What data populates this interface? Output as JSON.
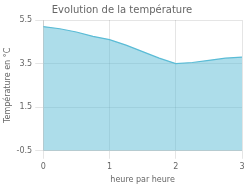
{
  "chart_data": {
    "type": "area",
    "title": "Evolution de la température",
    "xlabel": "heure par heure",
    "ylabel": "Température en °C",
    "x": [
      0,
      0.25,
      0.5,
      0.75,
      1.0,
      1.25,
      1.5,
      1.75,
      2.0,
      2.25,
      2.5,
      2.75,
      3.0
    ],
    "values": [
      5.2,
      5.1,
      4.95,
      4.75,
      4.6,
      4.35,
      4.05,
      3.75,
      3.5,
      3.55,
      3.65,
      3.75,
      3.8
    ],
    "color": "#5bbcd6",
    "xlim": [
      0,
      3
    ],
    "ylim": [
      -0.5,
      5.5
    ],
    "xticks": [
      0,
      1,
      2,
      3
    ],
    "yticks": [
      -0.5,
      1.5,
      3.5,
      5.5
    ],
    "grid": true
  }
}
